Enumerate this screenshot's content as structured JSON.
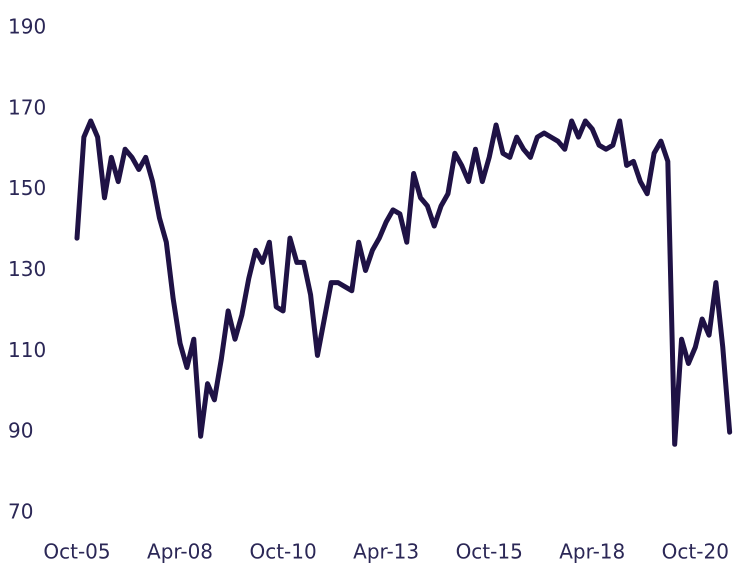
{
  "chart_data": {
    "type": "line",
    "categories": [
      "Oct-05",
      null,
      null,
      null,
      null,
      null,
      null,
      null,
      null,
      null,
      null,
      null,
      null,
      null,
      null,
      "Apr-08",
      null,
      null,
      null,
      null,
      null,
      null,
      null,
      null,
      null,
      null,
      null,
      null,
      null,
      null,
      "Oct-10",
      null,
      null,
      null,
      null,
      null,
      null,
      null,
      null,
      null,
      null,
      null,
      null,
      null,
      null,
      "Apr-13",
      null,
      null,
      null,
      null,
      null,
      null,
      null,
      null,
      null,
      null,
      null,
      null,
      null,
      null,
      "Oct-15",
      null,
      null,
      null,
      null,
      null,
      null,
      null,
      null,
      null,
      null,
      null,
      null,
      null,
      null,
      "Apr-18",
      null,
      null,
      null,
      null,
      null,
      null,
      null,
      null,
      null,
      null,
      null,
      null,
      null,
      null,
      "Oct-20",
      null,
      null,
      null,
      null,
      null
    ],
    "values": [
      138,
      163,
      167,
      163,
      148,
      158,
      152,
      160,
      158,
      155,
      158,
      152,
      143,
      137,
      123,
      112,
      106,
      113,
      89,
      102,
      98,
      108,
      120,
      113,
      119,
      128,
      135,
      132,
      137,
      121,
      120,
      138,
      132,
      132,
      124,
      109,
      118,
      127,
      127,
      126,
      125,
      137,
      130,
      135,
      138,
      142,
      145,
      144,
      137,
      154,
      148,
      146,
      141,
      146,
      149,
      159,
      156,
      152,
      160,
      152,
      158,
      166,
      159,
      158,
      163,
      160,
      158,
      163,
      164,
      163,
      162,
      160,
      167,
      163,
      167,
      165,
      161,
      160,
      161,
      167,
      156,
      157,
      152,
      149,
      159,
      162,
      157,
      87,
      113,
      107,
      111,
      118,
      114,
      127,
      111,
      90
    ],
    "color": "#1f1245",
    "ylim": [
      70,
      190
    ],
    "yticks": [
      70,
      90,
      110,
      130,
      150,
      170,
      190
    ],
    "grid": false
  }
}
